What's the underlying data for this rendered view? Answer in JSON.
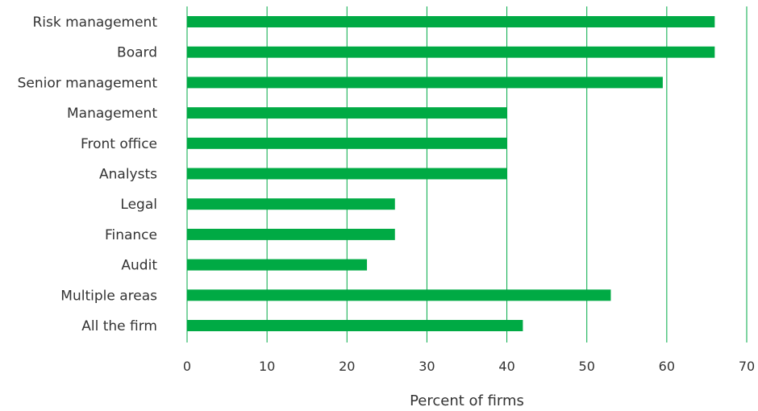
{
  "chart_data": {
    "type": "bar",
    "orientation": "horizontal",
    "title": "",
    "xlabel": "Percent of firms",
    "ylabel": "",
    "xlim": [
      0,
      70
    ],
    "xticks": [
      0,
      10,
      20,
      30,
      40,
      50,
      60,
      70
    ],
    "grid": "vertical",
    "bar_color": "#00aa44",
    "grid_color": "#00aa44",
    "categories": [
      "Risk management",
      "Board",
      "Senior management",
      "Management",
      "Front office",
      "Analysts",
      "Legal",
      "Finance",
      "Audit",
      "Multiple areas",
      "All the firm"
    ],
    "values": [
      66,
      66,
      59.5,
      40,
      40,
      40,
      26,
      26,
      22.5,
      53,
      42
    ]
  }
}
